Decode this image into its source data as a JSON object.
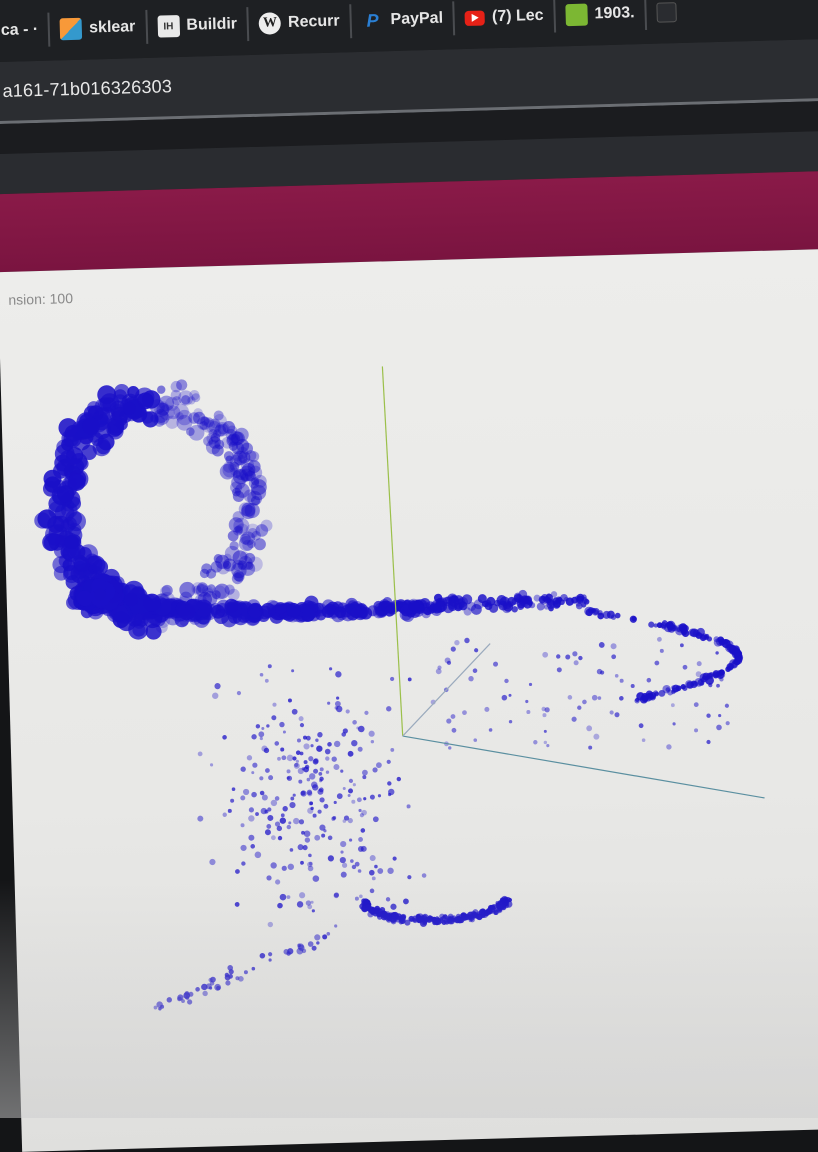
{
  "bookmarks": [
    {
      "label": "ca - ·",
      "icon": "generic-bookmark-icon"
    },
    {
      "label": "sklear",
      "icon": "sklearn-icon"
    },
    {
      "label": "Buildir",
      "icon": "ih-icon"
    },
    {
      "label": "Recurr",
      "icon": "wikipedia-icon"
    },
    {
      "label": "PayPal",
      "icon": "paypal-icon"
    },
    {
      "label": "(7) Lec",
      "icon": "youtube-icon"
    },
    {
      "label": "1903.",
      "icon": "green-tile-icon"
    },
    {
      "label": "",
      "icon": "dark-tile-icon"
    }
  ],
  "address": {
    "url_fragment": "a161-71b016326303"
  },
  "plot": {
    "dimension_label": "nsion: 100"
  },
  "colors": {
    "header": "#7d1544",
    "point": "#1a10c8",
    "axis_y": "#9bc04a",
    "axis_x": "#5a8fa0",
    "axis_z": "#9aaabd"
  },
  "chart_data": {
    "type": "scatter",
    "projection": "3d",
    "series": [
      {
        "color": "#1a10c8"
      }
    ]
  }
}
